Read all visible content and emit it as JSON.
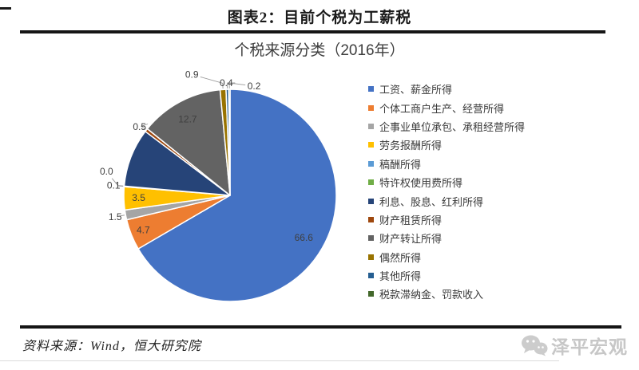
{
  "page": {
    "header": {
      "title": "图表2：目前个税为工薪税"
    },
    "footer": {
      "source": "资料来源：Wind，恒大研究院",
      "watermark": "泽平宏观"
    }
  },
  "chart_data": {
    "type": "pie",
    "title": "个税来源分类（2016年）",
    "legend_position": "right",
    "start_angle": "12 o'clock, clockwise",
    "units": "percent",
    "slices": [
      {
        "label": "工资、薪金所得",
        "value": 66.6,
        "data_label": "66.6",
        "color": "#4472C4"
      },
      {
        "label": "个体工商户生产、经营所得",
        "value": 4.7,
        "data_label": "4.7",
        "color": "#ED7D31"
      },
      {
        "label": "企事业单位承包、承租经营所得",
        "value": 1.5,
        "data_label": "1.5",
        "color": "#A5A5A5"
      },
      {
        "label": "劳务报酬所得",
        "value": 3.5,
        "data_label": "3.5",
        "color": "#FFC000"
      },
      {
        "label": "稿酬所得",
        "value": 0.1,
        "data_label": "0.1",
        "color": "#5B9BD5"
      },
      {
        "label": "特许权使用费所得",
        "value": 0.0,
        "data_label": "0.0",
        "color": "#70AD47"
      },
      {
        "label": "利息、股息、红利所得",
        "value": 8.9,
        "data_label": "",
        "color": "#264478"
      },
      {
        "label": "财产租赁所得",
        "value": 0.5,
        "data_label": "0.5",
        "color": "#9E480E"
      },
      {
        "label": "财产转让所得",
        "value": 12.7,
        "data_label": "12.7",
        "color": "#636363"
      },
      {
        "label": "偶然所得",
        "value": 0.9,
        "data_label": "0.9",
        "color": "#997300"
      },
      {
        "label": "其他所得",
        "value": 0.4,
        "data_label": "0.4",
        "color": "#255E91"
      },
      {
        "label": "税款滞纳金、罚款收入",
        "value": 0.2,
        "data_label": "0.2",
        "color": "#43682B"
      }
    ]
  }
}
